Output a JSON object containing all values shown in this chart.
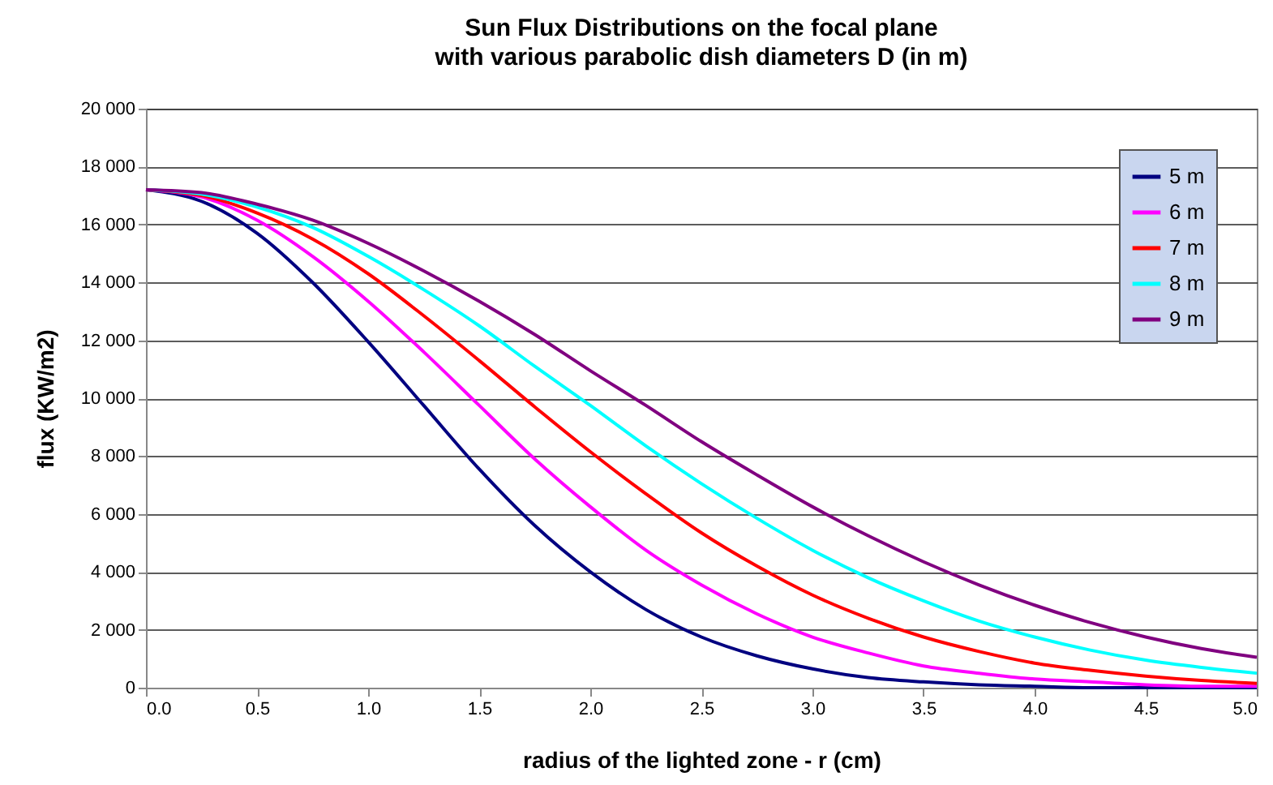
{
  "chart_data": {
    "type": "line",
    "title": "Sun Flux Distributions on the focal plane",
    "subtitle": "with various parabolic dish diameters D (in m)",
    "xlabel": "radius of the lighted zone - r (cm)",
    "ylabel": "flux (KW/m2)",
    "x": [
      0,
      0.25,
      0.5,
      0.75,
      1,
      1.25,
      1.5,
      1.75,
      2,
      2.25,
      2.5,
      2.75,
      3,
      3.25,
      3.5,
      3.75,
      4,
      4.25,
      4.5,
      4.75,
      5
    ],
    "series": [
      {
        "name": "5 m",
        "color": "#000080",
        "values": [
          17200,
          16800,
          15700,
          14000,
          11950,
          9750,
          7550,
          5600,
          4000,
          2700,
          1750,
          1100,
          650,
          350,
          200,
          100,
          50,
          0,
          0,
          0,
          0
        ]
      },
      {
        "name": "6 m",
        "color": "#ff00ff",
        "values": [
          17200,
          16950,
          16150,
          14900,
          13350,
          11600,
          9750,
          7900,
          6250,
          4750,
          3550,
          2550,
          1750,
          1200,
          750,
          500,
          300,
          200,
          100,
          50,
          50
        ]
      },
      {
        "name": "7 m",
        "color": "#ff0000",
        "values": [
          17200,
          17000,
          16400,
          15500,
          14300,
          12850,
          11300,
          9700,
          8150,
          6700,
          5350,
          4200,
          3200,
          2400,
          1750,
          1250,
          850,
          600,
          400,
          250,
          150
        ]
      },
      {
        "name": "8 m",
        "color": "#00ffff",
        "values": [
          17200,
          17050,
          16600,
          15900,
          14900,
          13750,
          12500,
          11100,
          9750,
          8350,
          7050,
          5850,
          4750,
          3800,
          3000,
          2300,
          1750,
          1300,
          950,
          700,
          500
        ]
      },
      {
        "name": "9 m",
        "color": "#800080",
        "values": [
          17200,
          17100,
          16700,
          16150,
          15350,
          14400,
          13350,
          12200,
          10950,
          9750,
          8500,
          7350,
          6250,
          5250,
          4350,
          3550,
          2850,
          2250,
          1750,
          1350,
          1050
        ]
      }
    ],
    "xlim": [
      0,
      5
    ],
    "xticks": [
      {
        "value": 0,
        "label": "0.0"
      },
      {
        "value": 0.5,
        "label": "0.5"
      },
      {
        "value": 1,
        "label": "1.0"
      },
      {
        "value": 1.5,
        "label": "1.5"
      },
      {
        "value": 2,
        "label": "2.0"
      },
      {
        "value": 2.5,
        "label": "2.5"
      },
      {
        "value": 3,
        "label": "3.0"
      },
      {
        "value": 3.5,
        "label": "3.5"
      },
      {
        "value": 4,
        "label": "4.0"
      },
      {
        "value": 4.5,
        "label": "4.5"
      },
      {
        "value": 5,
        "label": "5.0"
      }
    ],
    "ylim": [
      0,
      20000
    ],
    "yticks": [
      0,
      {
        "value": 2000,
        "label": "2 000"
      },
      {
        "value": 4000,
        "label": "4 000"
      },
      {
        "value": 6000,
        "label": "6 000"
      },
      {
        "value": 8000,
        "label": "8 000"
      },
      {
        "value": 10000,
        "label": "10 000"
      },
      {
        "value": 12000,
        "label": "12 000"
      },
      {
        "value": 14000,
        "label": "14 000"
      },
      {
        "value": 16000,
        "label": "16 000"
      },
      {
        "value": 18000,
        "label": "18 000"
      },
      {
        "value": 20000,
        "label": "20 000"
      }
    ],
    "grid": "y",
    "legend": "top right",
    "marker": "none",
    "line_style": "solid"
  }
}
